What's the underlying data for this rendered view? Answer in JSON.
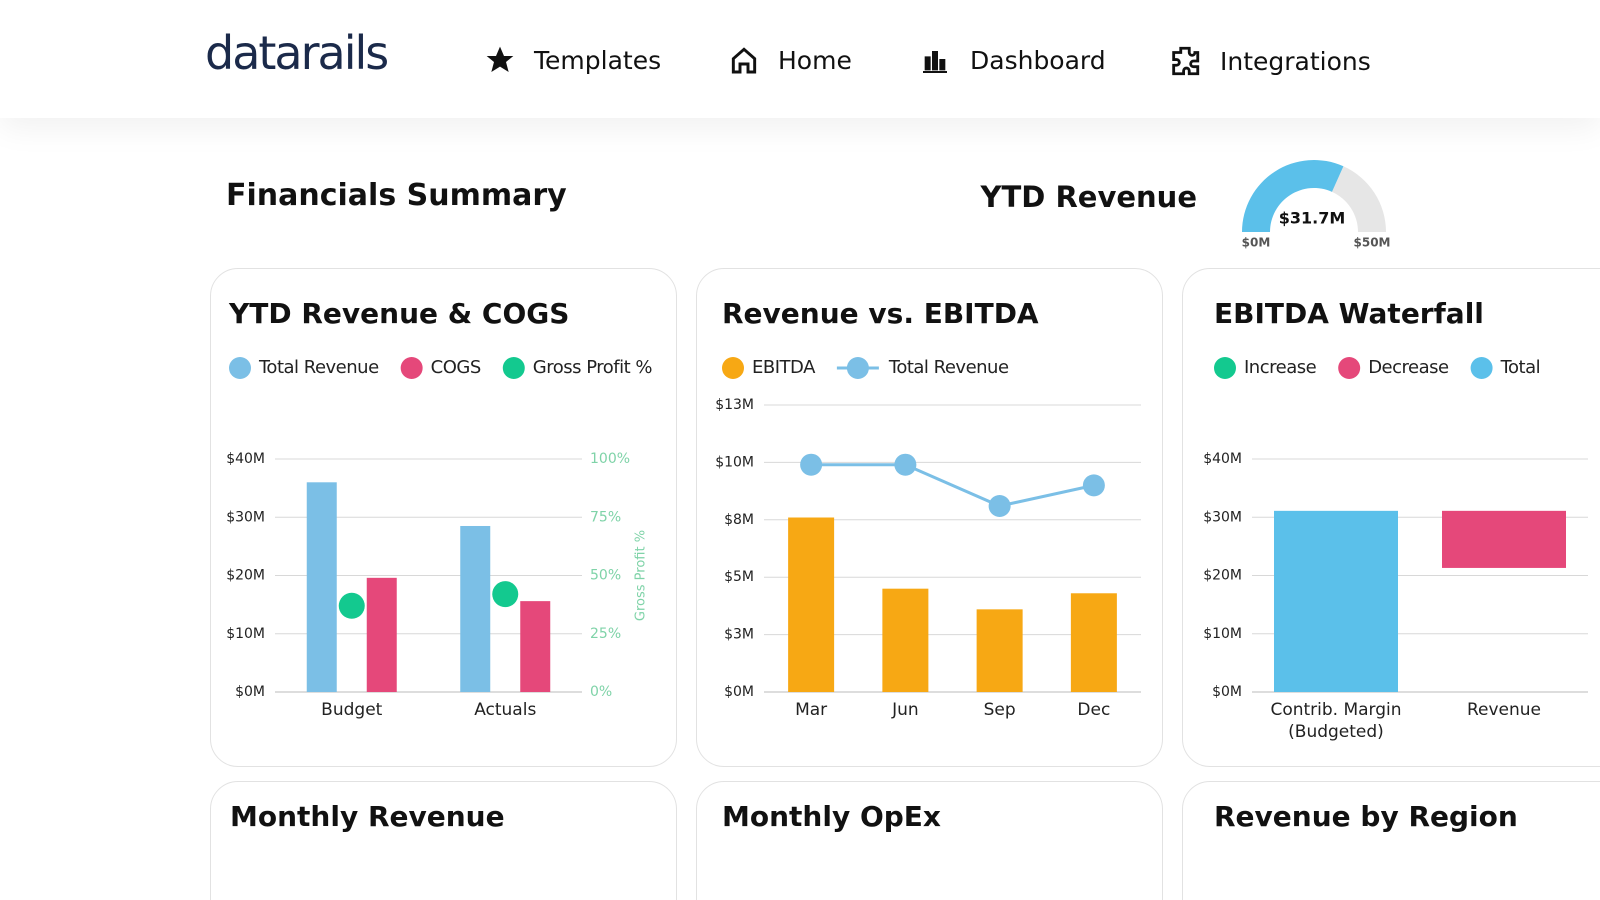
{
  "nav": {
    "logo": "datarails",
    "items": [
      "Templates",
      "Home",
      "Dashboard",
      "Integrations"
    ]
  },
  "heading": "Financials Summary",
  "chart_data": [
    {
      "type": "gauge",
      "title": "YTD Revenue",
      "values": [
        31.7
      ],
      "value_labels": [
        "$31.7M"
      ],
      "color": "#5bc0ea",
      "ylim": [
        0,
        50
      ],
      "yticks": [
        {
          "value": 0,
          "label": "$0M"
        },
        {
          "value": 50,
          "label": "$50M"
        }
      ]
    },
    {
      "type": "bar",
      "title": "YTD Revenue & COGS",
      "categories": [
        "Budget",
        "Actuals"
      ],
      "series": [
        {
          "name": "Total Revenue",
          "color": "#7bbfe6",
          "values": [
            36,
            28.5
          ]
        },
        {
          "name": "COGS",
          "color": "#e5487a",
          "values": [
            19.6,
            15.6
          ]
        },
        {
          "name": "Gross Profit %",
          "color": "#13c98f",
          "values": [
            37,
            42
          ],
          "axis": "y2",
          "marker": "dot"
        }
      ],
      "ylim": [
        0,
        40
      ],
      "yticks": [
        {
          "value": 0,
          "label": "$0M"
        },
        {
          "value": 10,
          "label": "$10M"
        },
        {
          "value": 20,
          "label": "$20M"
        },
        {
          "value": 30,
          "label": "$30M"
        },
        {
          "value": 40,
          "label": "$40M"
        }
      ],
      "y2lim": [
        0,
        100
      ],
      "y2ticks": [
        {
          "value": 0,
          "label": "0%"
        },
        {
          "value": 25,
          "label": "25%"
        },
        {
          "value": 50,
          "label": "50%"
        },
        {
          "value": 75,
          "label": "75%"
        },
        {
          "value": 100,
          "label": "100%"
        }
      ],
      "y2label": "Gross Profit %",
      "grid": true
    },
    {
      "type": "bar",
      "title": "Revenue vs. EBITDA",
      "categories": [
        "Mar",
        "Jun",
        "Sep",
        "Dec"
      ],
      "series": [
        {
          "name": "EBITDA",
          "color": "#f7a814",
          "values": [
            7.6,
            4.5,
            3.6,
            4.3
          ]
        },
        {
          "name": "Total Revenue",
          "color": "#7bbfe6",
          "values": [
            9.9,
            9.9,
            8.1,
            9.0
          ],
          "marker": "line"
        }
      ],
      "ylim": [
        0,
        12.5
      ],
      "yticks": [
        {
          "value": 0,
          "label": "$0M"
        },
        {
          "value": 2.5,
          "label": "$3M"
        },
        {
          "value": 5,
          "label": "$5M"
        },
        {
          "value": 7.5,
          "label": "$8M"
        },
        {
          "value": 10,
          "label": "$10M"
        },
        {
          "value": 12.5,
          "label": "$13M"
        }
      ],
      "grid": true
    },
    {
      "type": "waterfall",
      "title": "EBITDA Waterfall",
      "categories": [
        "Contrib. Margin (Budgeted)",
        "Revenue"
      ],
      "values": [
        31.1,
        -9.8
      ],
      "totals": [
        true,
        false
      ],
      "legend": [
        {
          "name": "Increase",
          "color": "#13c98f"
        },
        {
          "name": "Decrease",
          "color": "#e5487a"
        },
        {
          "name": "Total",
          "color": "#5bc0ea"
        }
      ],
      "ylim": [
        0,
        40
      ],
      "yticks": [
        {
          "value": 0,
          "label": "$0M"
        },
        {
          "value": 10,
          "label": "$10M"
        },
        {
          "value": 20,
          "label": "$20M"
        },
        {
          "value": 30,
          "label": "$30M"
        },
        {
          "value": 40,
          "label": "$40M"
        }
      ],
      "grid": true
    }
  ],
  "more_cards": [
    "Monthly Revenue",
    "Monthly OpEx",
    "Revenue by Region"
  ]
}
